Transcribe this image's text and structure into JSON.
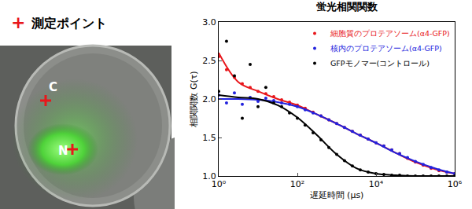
{
  "chart_data": {
    "type": "scatter",
    "title": "蛍光相関関数",
    "x_label": "遅延時間 (μs)",
    "y_label": "相関関数 G(τ)",
    "log": "x",
    "grid": false,
    "legend": "top right",
    "xlim": [
      1,
      1000000
    ],
    "xticks": [
      {
        "value": 1,
        "label": "10⁰"
      },
      {
        "value": 100,
        "label": "10²"
      },
      {
        "value": 10000,
        "label": "10⁴"
      },
      {
        "value": 1000000,
        "label": "10⁶"
      }
    ],
    "ylim": [
      1,
      3
    ],
    "yticks": [
      {
        "value": 1,
        "label": "1.0"
      },
      1.5,
      {
        "value": 2,
        "label": "2.0"
      },
      2.5,
      {
        "value": 3,
        "label": "3.0"
      }
    ],
    "x": [
      1,
      1.58,
      2.51,
      3.98,
      6.31,
      10,
      15.8,
      25.1,
      39.8,
      63.1,
      100,
      158,
      251,
      398,
      631,
      1000,
      1580,
      2510,
      3980,
      6310,
      10000,
      15800,
      25100,
      39800,
      63100,
      100000,
      158000,
      251000,
      398000,
      631000,
      1000000
    ],
    "fit_x": [
      1,
      3.16,
      10,
      31.6,
      100,
      316,
      1000,
      3162,
      10000,
      31623,
      100000,
      316228,
      1000000
    ],
    "series": [
      {
        "name": "細胞質のプロテアソーム(α4-GFP)",
        "color": "#e8161b",
        "marker": "circle",
        "line_style": "solid",
        "values": [
          2.55,
          2.38,
          2.28,
          2.2,
          2.15,
          2.1,
          2.07,
          2.03,
          1.99,
          1.96,
          1.92,
          1.88,
          1.83,
          1.78,
          1.73,
          1.68,
          1.63,
          1.58,
          1.53,
          1.48,
          1.43,
          1.39,
          1.34,
          1.29,
          1.23,
          1.18,
          1.14,
          1.1,
          1.07,
          1.05,
          1.03
        ],
        "fit_values": [
          2.6,
          2.22,
          2.1,
          2.0,
          1.92,
          1.8,
          1.68,
          1.55,
          1.43,
          1.3,
          1.18,
          1.09,
          1.03
        ]
      },
      {
        "name": "核内のプロテアソーム(α4-GFP)",
        "color": "#2222dd",
        "marker": "circle",
        "line_style": "solid",
        "values": [
          2.05,
          1.95,
          2.08,
          1.93,
          2.02,
          1.97,
          2.01,
          1.98,
          1.95,
          1.93,
          1.9,
          1.86,
          1.82,
          1.78,
          1.73,
          1.68,
          1.63,
          1.58,
          1.53,
          1.48,
          1.43,
          1.39,
          1.34,
          1.29,
          1.24,
          1.19,
          1.15,
          1.11,
          1.08,
          1.05,
          1.03
        ],
        "fit_values": [
          2.0,
          2.0,
          1.99,
          1.96,
          1.9,
          1.8,
          1.68,
          1.55,
          1.43,
          1.3,
          1.19,
          1.1,
          1.03
        ]
      },
      {
        "name": "GFPモノマー(コントロール)",
        "color": "#000000",
        "marker": "circle",
        "line_style": "solid",
        "values": [
          2.1,
          2.75,
          2.3,
          1.75,
          2.45,
          1.9,
          2.15,
          1.95,
          1.9,
          1.82,
          1.75,
          1.66,
          1.56,
          1.47,
          1.37,
          1.28,
          1.2,
          1.13,
          1.08,
          1.05,
          1.03,
          1.02,
          1.01,
          1.01,
          1.0,
          1.0,
          1.0,
          1.0,
          1.0,
          1.0,
          1.0
        ],
        "fit_values": [
          2.05,
          2.02,
          2.0,
          1.92,
          1.76,
          1.53,
          1.28,
          1.1,
          1.03,
          1.01,
          1.0,
          1.0,
          1.0
        ]
      }
    ]
  },
  "image_panel": {
    "legend": {
      "symbol": "+",
      "text": "測定ポイント",
      "color": "#e8161b"
    },
    "points": [
      {
        "label": "C"
      },
      {
        "label": "N"
      }
    ]
  }
}
